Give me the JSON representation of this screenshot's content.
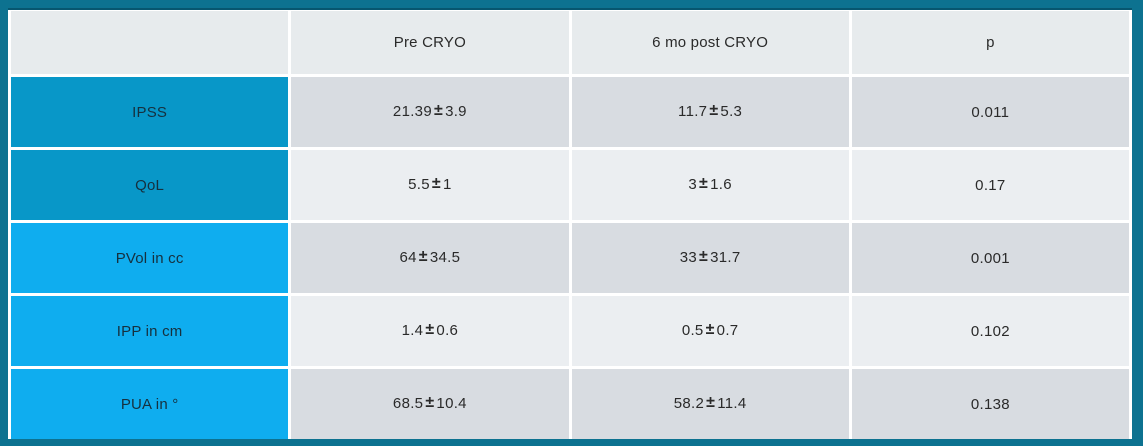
{
  "symbols": {
    "plus_minus": "±"
  },
  "colors": {
    "border_teal": "#0d7290",
    "border_teal_dark": "#07566f",
    "cell_gap_white": "#ffffff",
    "header_bg": "#e7ebed",
    "row_label_dark_blue": "#0897c8",
    "row_label_bright_blue": "#0fadef",
    "row_odd_bg": "#d8dce1",
    "row_even_bg": "#ebeef1",
    "text_dark": "#2a2a2a",
    "label_text": "#16303e"
  },
  "chart_data": {
    "type": "table",
    "title": "",
    "columns": [
      "",
      "Pre CRYO",
      "6 mo post CRYO",
      "p"
    ],
    "rows": [
      {
        "label": "IPSS",
        "pre": {
          "mean": "21.39",
          "sd": "3.9"
        },
        "post": {
          "mean": "11.7",
          "sd": "5.3"
        },
        "p": "0.011"
      },
      {
        "label": "QoL",
        "pre": {
          "mean": "5.5",
          "sd": "1"
        },
        "post": {
          "mean": "3",
          "sd": "1.6"
        },
        "p": "0.17"
      },
      {
        "label": "PVol in cc",
        "pre": {
          "mean": "64",
          "sd": "34.5"
        },
        "post": {
          "mean": "33",
          "sd": "31.7"
        },
        "p": "0.001"
      },
      {
        "label": "IPP in cm",
        "pre": {
          "mean": "1.4",
          "sd": "0.6"
        },
        "post": {
          "mean": "0.5",
          "sd": "0.7"
        },
        "p": "0.102"
      },
      {
        "label": "PUA in °",
        "pre": {
          "mean": "68.5",
          "sd": "10.4"
        },
        "post": {
          "mean": "58.2",
          "sd": "11.4"
        },
        "p": "0.138"
      }
    ]
  }
}
